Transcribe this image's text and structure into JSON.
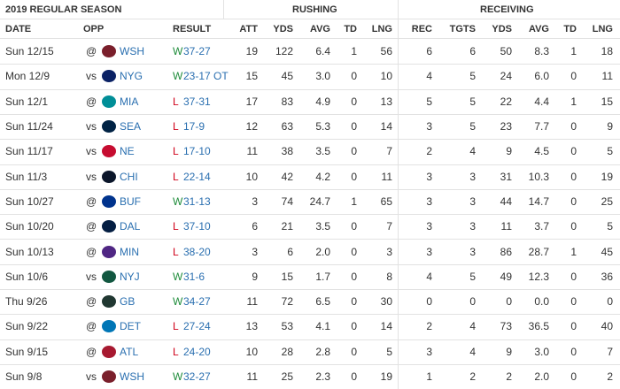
{
  "header": {
    "season": "2019 REGULAR SEASON",
    "rushing": "RUSHING",
    "receiving": "RECEIVING"
  },
  "columns": [
    "DATE",
    "OPP",
    "RESULT",
    "ATT",
    "YDS",
    "AVG",
    "TD",
    "LNG",
    "REC",
    "TGTS",
    "YDS",
    "AVG",
    "TD",
    "LNG"
  ],
  "rows": [
    {
      "date": "Sun 12/15",
      "loc": "@",
      "team": "WSH",
      "outcome": "W",
      "score": "37-27",
      "stats": [
        "19",
        "122",
        "6.4",
        "1",
        "56",
        "6",
        "6",
        "50",
        "8.3",
        "1",
        "18"
      ]
    },
    {
      "date": "Mon 12/9",
      "loc": "vs",
      "team": "NYG",
      "outcome": "W",
      "score": "23-17 OT",
      "stats": [
        "15",
        "45",
        "3.0",
        "0",
        "10",
        "4",
        "5",
        "24",
        "6.0",
        "0",
        "11"
      ]
    },
    {
      "date": "Sun 12/1",
      "loc": "@",
      "team": "MIA",
      "outcome": "L",
      "score": "37-31",
      "stats": [
        "17",
        "83",
        "4.9",
        "0",
        "13",
        "5",
        "5",
        "22",
        "4.4",
        "1",
        "15"
      ]
    },
    {
      "date": "Sun 11/24",
      "loc": "vs",
      "team": "SEA",
      "outcome": "L",
      "score": "17-9",
      "stats": [
        "12",
        "63",
        "5.3",
        "0",
        "14",
        "3",
        "5",
        "23",
        "7.7",
        "0",
        "9"
      ]
    },
    {
      "date": "Sun 11/17",
      "loc": "vs",
      "team": "NE",
      "outcome": "L",
      "score": "17-10",
      "stats": [
        "11",
        "38",
        "3.5",
        "0",
        "7",
        "2",
        "4",
        "9",
        "4.5",
        "0",
        "5"
      ]
    },
    {
      "date": "Sun 11/3",
      "loc": "vs",
      "team": "CHI",
      "outcome": "L",
      "score": "22-14",
      "stats": [
        "10",
        "42",
        "4.2",
        "0",
        "11",
        "3",
        "3",
        "31",
        "10.3",
        "0",
        "19"
      ]
    },
    {
      "date": "Sun 10/27",
      "loc": "@",
      "team": "BUF",
      "outcome": "W",
      "score": "31-13",
      "stats": [
        "3",
        "74",
        "24.7",
        "1",
        "65",
        "3",
        "3",
        "44",
        "14.7",
        "0",
        "25"
      ]
    },
    {
      "date": "Sun 10/20",
      "loc": "@",
      "team": "DAL",
      "outcome": "L",
      "score": "37-10",
      "stats": [
        "6",
        "21",
        "3.5",
        "0",
        "7",
        "3",
        "3",
        "11",
        "3.7",
        "0",
        "5"
      ]
    },
    {
      "date": "Sun 10/13",
      "loc": "@",
      "team": "MIN",
      "outcome": "L",
      "score": "38-20",
      "stats": [
        "3",
        "6",
        "2.0",
        "0",
        "3",
        "3",
        "3",
        "86",
        "28.7",
        "1",
        "45"
      ]
    },
    {
      "date": "Sun 10/6",
      "loc": "vs",
      "team": "NYJ",
      "outcome": "W",
      "score": "31-6",
      "stats": [
        "9",
        "15",
        "1.7",
        "0",
        "8",
        "4",
        "5",
        "49",
        "12.3",
        "0",
        "36"
      ]
    },
    {
      "date": "Thu 9/26",
      "loc": "@",
      "team": "GB",
      "outcome": "W",
      "score": "34-27",
      "stats": [
        "11",
        "72",
        "6.5",
        "0",
        "30",
        "0",
        "0",
        "0",
        "0.0",
        "0",
        "0"
      ]
    },
    {
      "date": "Sun 9/22",
      "loc": "@",
      "team": "DET",
      "outcome": "L",
      "score": "27-24",
      "stats": [
        "13",
        "53",
        "4.1",
        "0",
        "14",
        "2",
        "4",
        "73",
        "36.5",
        "0",
        "40"
      ]
    },
    {
      "date": "Sun 9/15",
      "loc": "@",
      "team": "ATL",
      "outcome": "L",
      "score": "24-20",
      "stats": [
        "10",
        "28",
        "2.8",
        "0",
        "5",
        "3",
        "4",
        "9",
        "3.0",
        "0",
        "7"
      ]
    },
    {
      "date": "Sun 9/8",
      "loc": "vs",
      "team": "WSH",
      "outcome": "W",
      "score": "32-27",
      "stats": [
        "11",
        "25",
        "2.3",
        "0",
        "19",
        "1",
        "2",
        "2",
        "2.0",
        "0",
        "2"
      ]
    }
  ]
}
